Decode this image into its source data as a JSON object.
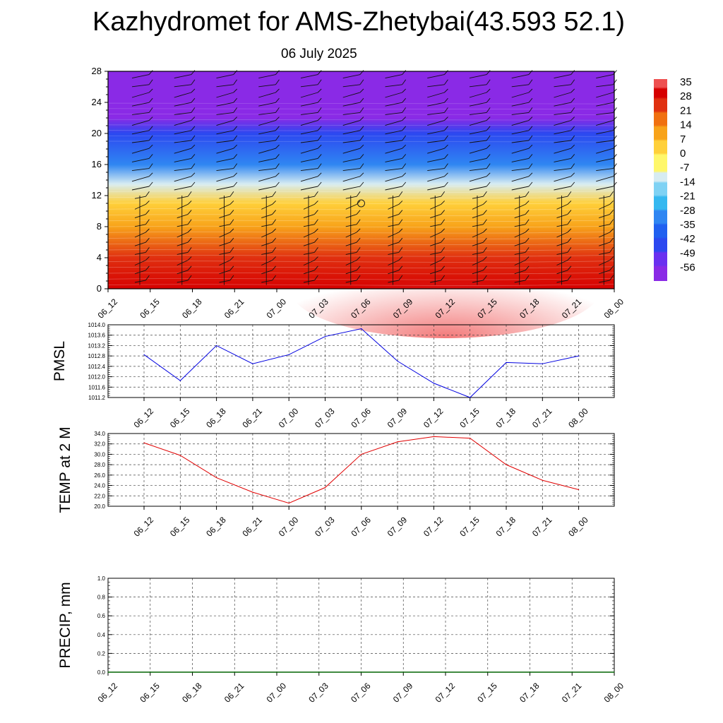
{
  "header": {
    "title": "Kazhydromet for AMS-Zhetybai(43.593 52.1)",
    "subtitle": "06 July 2025"
  },
  "chart_data": [
    {
      "type": "heatmap",
      "name": "vertical-cross-section",
      "title": "",
      "x_ticks": [
        "06_12",
        "06_15",
        "06_18",
        "06_21",
        "07_00",
        "07_03",
        "07_06",
        "07_09",
        "07_12",
        "07_15",
        "07_18",
        "07_21",
        "08_00"
      ],
      "ylim": [
        0,
        28
      ],
      "y_ticks": [
        0,
        4,
        8,
        12,
        16,
        20,
        24,
        28
      ],
      "colorbar_labels": [
        "35",
        "28",
        "21",
        "14",
        "7",
        "0",
        "-7",
        "-14",
        "-21",
        "-28",
        "-35",
        "-42",
        "-49",
        "-56"
      ],
      "colorbar_range": [
        -63,
        38
      ],
      "colors": {
        "warm": "#d60000",
        "hot": "#ee4a4a",
        "orange": "#f58a0a",
        "yellow": "#fff76a",
        "cyan": "#35b8f0",
        "blue": "#2060f0",
        "violet": "#8a2ae6"
      },
      "level_temperatures": [
        {
          "level": 0,
          "temp": 30
        },
        {
          "level": 4,
          "temp": 23
        },
        {
          "level": 8,
          "temp": 11
        },
        {
          "level": 11,
          "temp": 1
        },
        {
          "level": 13.5,
          "temp": -12
        },
        {
          "level": 16,
          "temp": -28
        },
        {
          "level": 20,
          "temp": -45
        },
        {
          "level": 22,
          "temp": -57
        },
        {
          "level": 23.5,
          "temp": -60
        },
        {
          "level": 28,
          "temp": -60
        }
      ],
      "has_wind_barbs": true,
      "calm_marker_position": {
        "x_index": 6,
        "level": 11
      }
    },
    {
      "type": "line",
      "name": "pmsl",
      "ylabel": "PMSL",
      "ylim": [
        1011.2,
        1014.0
      ],
      "y_ticks": [
        "1014.0",
        "1013.6",
        "1013.2",
        "1012.8",
        "1012.4",
        "1012.0",
        "1011.6",
        "1011.2"
      ],
      "x_ticks": [
        "06_12",
        "06_15",
        "06_18",
        "06_21",
        "07_00",
        "07_03",
        "07_06",
        "07_09",
        "07_12",
        "07_15",
        "07_18",
        "07_21",
        "08_00"
      ],
      "color": "#0000e0",
      "values": [
        1012.85,
        1011.85,
        1013.2,
        1012.5,
        1012.85,
        1013.55,
        1013.85,
        1012.6,
        1011.75,
        1011.2,
        1012.55,
        1012.5,
        1012.8
      ]
    },
    {
      "type": "line",
      "name": "temperature",
      "ylabel": "TEMP at 2 M",
      "ylim": [
        20.0,
        34.0
      ],
      "y_ticks": [
        "34.0",
        "32.0",
        "30.0",
        "28.0",
        "26.0",
        "24.0",
        "22.0",
        "20.0"
      ],
      "x_ticks": [
        "06_12",
        "06_15",
        "06_18",
        "06_21",
        "07_00",
        "07_03",
        "07_06",
        "07_09",
        "07_12",
        "07_15",
        "07_18",
        "07_21",
        "08_00"
      ],
      "color": "#e00000",
      "values": [
        32.2,
        29.8,
        25.5,
        22.7,
        20.6,
        23.6,
        30.0,
        32.4,
        33.4,
        33.1,
        28.0,
        25.0,
        23.2
      ]
    },
    {
      "type": "line",
      "name": "precipitation",
      "ylabel": "PRECIP, mm",
      "ylim": [
        0.0,
        1.0
      ],
      "y_ticks": [
        "1.0",
        "0.8",
        "0.6",
        "0.4",
        "0.2",
        "0.0"
      ],
      "x_ticks": [
        "06_12",
        "06_15",
        "06_18",
        "06_21",
        "07_00",
        "07_03",
        "07_06",
        "07_09",
        "07_12",
        "07_15",
        "07_18",
        "07_21",
        "08_00"
      ],
      "color": "#006400",
      "values": [
        0,
        0,
        0,
        0,
        0,
        0,
        0,
        0,
        0,
        0,
        0,
        0,
        0
      ]
    }
  ]
}
